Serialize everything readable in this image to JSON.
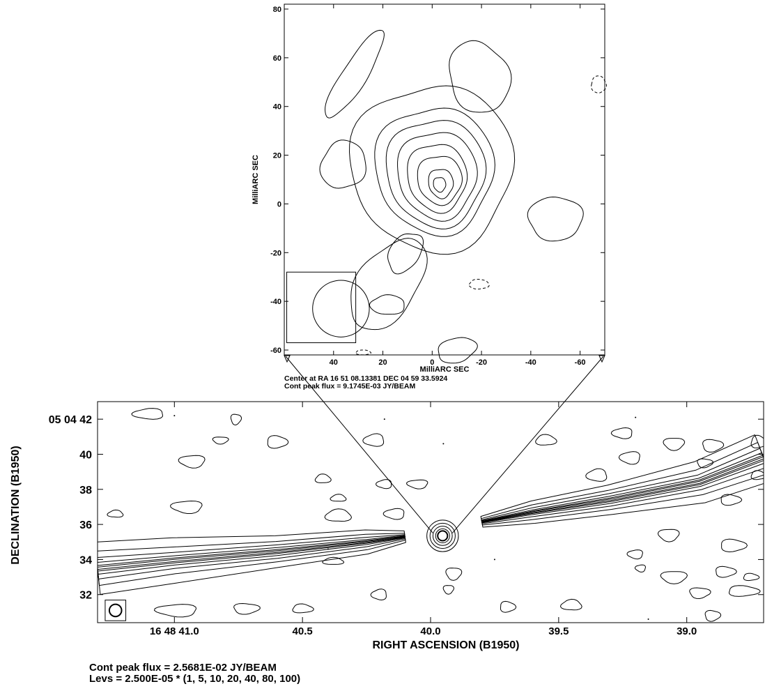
{
  "chart_data": [
    {
      "type": "contour",
      "panel": "inset",
      "xlabel": "MilliARC SEC",
      "ylabel": "MilliARC SEC",
      "xlim": [
        60,
        -70
      ],
      "ylim": [
        -62,
        82
      ],
      "xticks": [
        {
          "v": 40,
          "label": "40"
        },
        {
          "v": 20,
          "label": "20"
        },
        {
          "v": 0,
          "label": "0"
        },
        {
          "v": -20,
          "label": "-20"
        },
        {
          "v": -40,
          "label": "-40"
        },
        {
          "v": -60,
          "label": "-60"
        }
      ],
      "yticks": [
        {
          "v": 80,
          "label": "80"
        },
        {
          "v": 60,
          "label": "60"
        },
        {
          "v": 40,
          "label": "40"
        },
        {
          "v": 20,
          "label": "20"
        },
        {
          "v": 0,
          "label": "0"
        },
        {
          "v": -20,
          "label": "-20"
        },
        {
          "v": -40,
          "label": "-40"
        },
        {
          "v": -60,
          "label": "-60"
        }
      ],
      "center_text": "Center at RA 16 51 08.13381  DEC 04 59 33.5924",
      "peak_flux_text": "Cont peak flux =  9.1745E-03 JY/BEAM",
      "core_peak": [
        -3,
        8
      ],
      "beam": {
        "cx": 37,
        "cy": -43,
        "r": 10,
        "box": {
          "x0": 59,
          "x1": 31,
          "y0": -57,
          "y1": -28
        }
      },
      "blobs": [
        {
          "cx": 31.5,
          "cy": 53,
          "rx": 5,
          "ry": 21,
          "rot": 32,
          "style": "solid"
        },
        {
          "cx": -19,
          "cy": 52,
          "rx": 12,
          "ry": 15,
          "rot": -20,
          "style": "solid"
        },
        {
          "cx": -67.5,
          "cy": 49,
          "rx": 3,
          "ry": 3.5,
          "rot": 0,
          "style": "dashed"
        },
        {
          "cx": 36,
          "cy": 16,
          "rx": 9,
          "ry": 10,
          "rot": 28,
          "style": "solid"
        },
        {
          "cx": -50,
          "cy": -6,
          "rx": 11,
          "ry": 9,
          "rot": 0,
          "style": "solid"
        },
        {
          "cx": 18,
          "cy": -33,
          "rx": 12,
          "ry": 21,
          "rot": 34,
          "style": "solid"
        },
        {
          "cx": 11,
          "cy": -20,
          "rx": 6,
          "ry": 9,
          "rot": 34,
          "style": "solid"
        },
        {
          "cx": -19,
          "cy": -33,
          "rx": 4,
          "ry": 2,
          "rot": 0,
          "style": "dashed"
        },
        {
          "cx": 18,
          "cy": -41.5,
          "rx": 7,
          "ry": 4,
          "rot": 0,
          "style": "solid"
        },
        {
          "cx": -10,
          "cy": -60,
          "rx": 8,
          "ry": 5,
          "rot": -15,
          "style": "solid"
        },
        {
          "cx": 28,
          "cy": -61,
          "rx": 3,
          "ry": 1,
          "rot": 0,
          "style": "dashed"
        }
      ],
      "core_rings": [
        {
          "cx": 0,
          "cy": 15,
          "rx": 33,
          "ry": 34
        },
        {
          "cx": -1,
          "cy": 14,
          "rx": 24,
          "ry": 26
        },
        {
          "cx": -1.5,
          "cy": 13,
          "rx": 20,
          "ry": 22
        },
        {
          "cx": -2,
          "cy": 12,
          "rx": 16,
          "ry": 18
        },
        {
          "cx": -2,
          "cy": 11,
          "rx": 12,
          "ry": 14
        },
        {
          "cx": -3,
          "cy": 10,
          "rx": 9,
          "ry": 10
        },
        {
          "cx": -3.5,
          "cy": 8.5,
          "rx": 5,
          "ry": 6
        },
        {
          "cx": -3,
          "cy": 8,
          "rx": 2.5,
          "ry": 3
        }
      ]
    },
    {
      "type": "contour",
      "panel": "main",
      "xlabel": "RIGHT ASCENSION (B1950)",
      "ylabel": "DECLINATION (B1950)",
      "xlim": [
        41.3,
        38.7
      ],
      "ylim": [
        30.4,
        43
      ],
      "xticks": [
        {
          "v": 41.0,
          "label": "16 48 41.0"
        },
        {
          "v": 40.5,
          "label": "40.5"
        },
        {
          "v": 40.0,
          "label": "40.0"
        },
        {
          "v": 39.5,
          "label": "39.5"
        },
        {
          "v": 39.0,
          "label": "39.0"
        }
      ],
      "yticks": [
        {
          "v": 42,
          "label": "05 04 42"
        },
        {
          "v": 40,
          "label": "40"
        },
        {
          "v": 38,
          "label": "38"
        },
        {
          "v": 36,
          "label": "36"
        },
        {
          "v": 34,
          "label": "34"
        },
        {
          "v": 32,
          "label": "32"
        }
      ],
      "peak_flux_text": "Cont peak flux =  2.5681E-02 JY/BEAM",
      "levels_text": "Levs = 2.500E-05 * (1, 5, 10, 20, 40, 80, 100)",
      "core": {
        "x": 39.953,
        "y": 35.35,
        "radii": [
          0.9,
          0.72,
          0.55,
          0.4,
          0.28
        ]
      },
      "beam": {
        "x": 41.23,
        "y": 31.1,
        "r": 0.35
      },
      "jets": [
        {
          "name": "east",
          "path": [
            [
              41.3,
              33.5
            ],
            [
              41.0,
              33.95
            ],
            [
              40.6,
              34.45
            ],
            [
              40.25,
              35.0
            ],
            [
              40.1,
              35.3
            ]
          ],
          "half_widths": [
            1.5,
            1.05,
            0.75,
            0.5,
            0.3,
            0.15
          ]
        },
        {
          "name": "west",
          "path": [
            [
              38.7,
              39.8
            ],
            [
              38.95,
              38.4
            ],
            [
              39.3,
              37.4
            ],
            [
              39.6,
              36.7
            ],
            [
              39.8,
              36.15
            ]
          ],
          "half_widths": [
            1.4,
            1.0,
            0.7,
            0.45,
            0.28,
            0.14
          ]
        }
      ],
      "blobs": [
        [
          41.1,
          42.3,
          0.06,
          0.3
        ],
        [
          41.23,
          36.6,
          0.03,
          0.2
        ],
        [
          40.95,
          37.0,
          0.06,
          0.35
        ],
        [
          40.93,
          39.6,
          0.05,
          0.35
        ],
        [
          40.82,
          40.8,
          0.03,
          0.2
        ],
        [
          40.76,
          42.0,
          0.02,
          0.3
        ],
        [
          40.6,
          40.7,
          0.04,
          0.35
        ],
        [
          40.42,
          38.6,
          0.03,
          0.25
        ],
        [
          40.36,
          36.5,
          0.05,
          0.35
        ],
        [
          40.36,
          37.5,
          0.03,
          0.2
        ],
        [
          40.22,
          40.8,
          0.04,
          0.35
        ],
        [
          40.18,
          38.3,
          0.03,
          0.25
        ],
        [
          40.38,
          33.9,
          0.04,
          0.2
        ],
        [
          40.2,
          32.0,
          0.03,
          0.3
        ],
        [
          40.14,
          36.6,
          0.04,
          0.3
        ],
        [
          40.05,
          38.3,
          0.04,
          0.25
        ],
        [
          39.93,
          32.3,
          0.02,
          0.25
        ],
        [
          39.91,
          33.2,
          0.03,
          0.35
        ],
        [
          39.7,
          31.3,
          0.03,
          0.3
        ],
        [
          39.45,
          31.4,
          0.04,
          0.3
        ],
        [
          39.2,
          34.3,
          0.03,
          0.25
        ],
        [
          39.18,
          33.5,
          0.02,
          0.2
        ],
        [
          39.07,
          35.4,
          0.04,
          0.35
        ],
        [
          39.05,
          33.0,
          0.05,
          0.35
        ],
        [
          38.95,
          32.1,
          0.04,
          0.3
        ],
        [
          38.85,
          33.3,
          0.04,
          0.3
        ],
        [
          38.9,
          30.8,
          0.03,
          0.3
        ],
        [
          38.78,
          32.2,
          0.06,
          0.3
        ],
        [
          38.82,
          34.8,
          0.05,
          0.35
        ],
        [
          38.75,
          33.0,
          0.03,
          0.2
        ],
        [
          38.83,
          37.4,
          0.04,
          0.3
        ],
        [
          39.35,
          38.8,
          0.04,
          0.35
        ],
        [
          39.22,
          39.8,
          0.04,
          0.35
        ],
        [
          39.05,
          40.6,
          0.04,
          0.35
        ],
        [
          38.93,
          39.5,
          0.03,
          0.25
        ],
        [
          38.9,
          40.5,
          0.04,
          0.35
        ],
        [
          38.72,
          40.7,
          0.03,
          0.35
        ],
        [
          38.72,
          38.8,
          0.03,
          0.25
        ],
        [
          39.25,
          41.2,
          0.04,
          0.3
        ],
        [
          39.55,
          40.8,
          0.04,
          0.3
        ],
        [
          40.99,
          31.1,
          0.08,
          0.35
        ],
        [
          40.72,
          31.2,
          0.05,
          0.3
        ],
        [
          40.5,
          31.2,
          0.04,
          0.25
        ]
      ],
      "dots": [
        [
          41.0,
          42.2
        ],
        [
          40.18,
          42.0
        ],
        [
          39.95,
          40.6
        ],
        [
          39.2,
          42.1
        ],
        [
          40.4,
          34.6
        ],
        [
          39.75,
          34.0
        ],
        [
          39.15,
          30.6
        ]
      ]
    }
  ]
}
